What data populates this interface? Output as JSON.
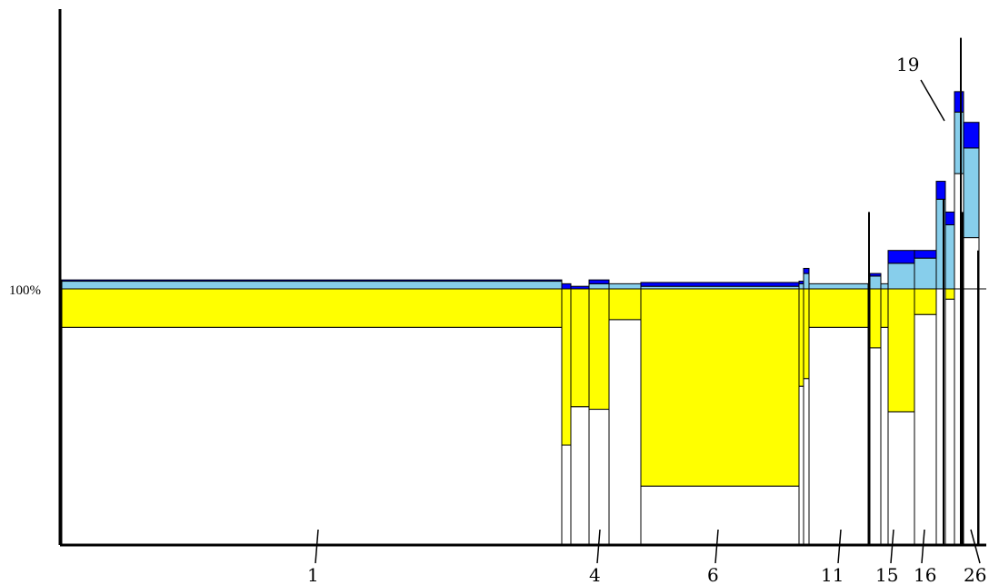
{
  "chart_data": {
    "type": "bar",
    "variant": "variable-width stacked bars",
    "reference_line": {
      "value": 100,
      "label": "100%"
    },
    "axis": {
      "y_max_approx": 200,
      "y_min": 0
    },
    "colors": {
      "white": "#ffffff",
      "yellow": "#ffff00",
      "light_blue": "#87ceeb",
      "blue": "#0000ff",
      "outline": "#000000"
    },
    "tick_labels": [
      "1",
      "4",
      "6",
      "11",
      "15",
      "16",
      "19",
      "26"
    ],
    "bars": [
      {
        "white": 85,
        "yellow": 15,
        "light_blue": 3,
        "blue": 0.5
      },
      {
        "white": 39,
        "yellow": 61,
        "light_blue": 0,
        "blue": 2
      },
      {
        "white": 54,
        "yellow": 46,
        "light_blue": 0,
        "blue": 1
      },
      {
        "white": 53,
        "yellow": 47,
        "light_blue": 2,
        "blue": 1.5
      },
      {
        "white": 88,
        "yellow": 12,
        "light_blue": 2,
        "blue": 0
      },
      {
        "white": 23,
        "yellow": 77,
        "light_blue": 1,
        "blue": 1.5
      },
      {
        "white": 62,
        "yellow": 38,
        "light_blue": 2,
        "blue": 1
      },
      {
        "white": 65,
        "yellow": 35,
        "light_blue": 6,
        "blue": 2
      },
      {
        "white": 85,
        "yellow": 15,
        "light_blue": 2,
        "blue": 0
      },
      {
        "white": 77,
        "yellow": 23,
        "light_blue": 5,
        "blue": 1
      },
      {
        "white": 85,
        "yellow": 15,
        "light_blue": 2,
        "blue": 0
      },
      {
        "white": 52,
        "yellow": 48,
        "light_blue": 10,
        "blue": 5
      },
      {
        "white": 90,
        "yellow": 10,
        "light_blue": 12,
        "blue": 3
      },
      {
        "white": 100,
        "yellow": 0,
        "light_blue": 35,
        "blue": 7
      },
      {
        "white": 96,
        "yellow": 4,
        "light_blue": 25,
        "blue": 5
      },
      {
        "white": 145,
        "yellow": 0,
        "light_blue": 24,
        "blue": 8
      },
      {
        "white": 120,
        "yellow": 0,
        "light_blue": 35,
        "blue": 10
      },
      {
        "white": 99,
        "yellow": 1,
        "light_blue": 6,
        "blue": 2
      }
    ],
    "spikes": [
      {
        "value": 130
      },
      {
        "value": 135
      },
      {
        "value": 198
      },
      {
        "value": 130
      },
      {
        "value": 115
      }
    ]
  }
}
